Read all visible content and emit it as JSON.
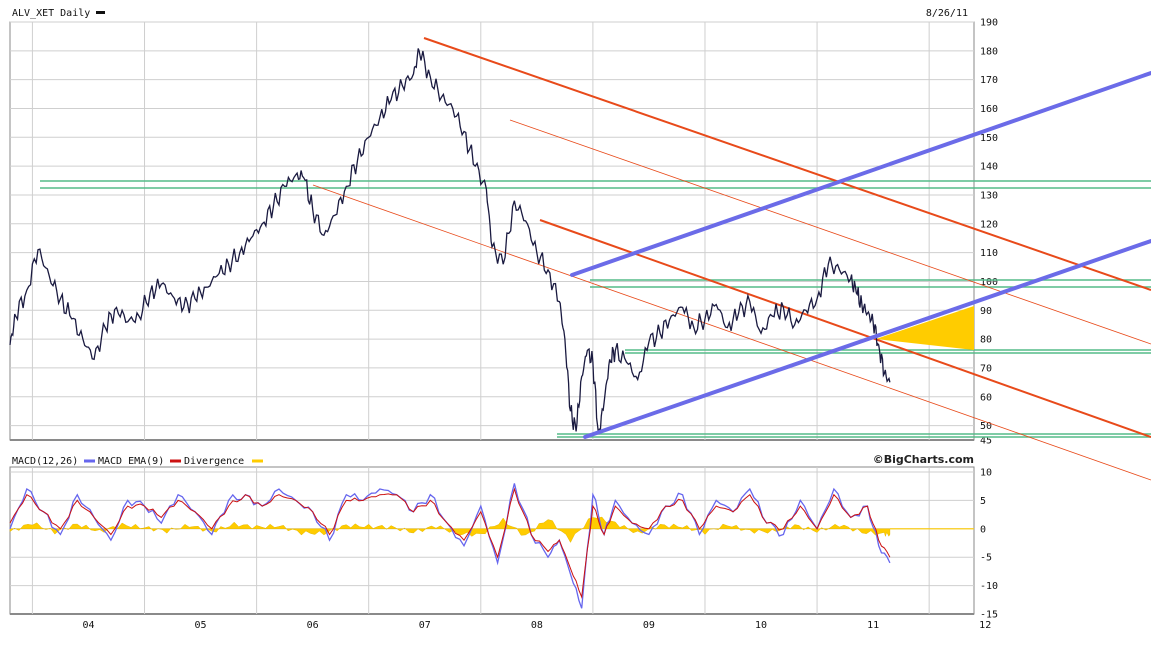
{
  "header": {
    "symbol_title": "ALV_XET Daily",
    "date": "8/26/11"
  },
  "legend": {
    "macd": "MACD(12,26)",
    "ema": "MACD EMA(9)",
    "divergence": "Divergence"
  },
  "brand": "©BigCharts.com",
  "colors": {
    "price": "#1a1a40",
    "macd": "#6666ee",
    "ema": "#cc1111",
    "divergence": "#ffcc00",
    "trend_blue": "#6b6be8",
    "channel_red": "#e84a1a",
    "support_green": "#55bb88",
    "grid": "#c8c8c8"
  },
  "chart_data": [
    {
      "type": "line",
      "name": "price",
      "ylim": [
        45,
        190
      ],
      "xlim": [
        2003.8,
        2012.4
      ],
      "y_ticks": [
        "190",
        "180",
        "170",
        "160",
        "150",
        "140",
        "130",
        "120",
        "110",
        "100",
        "90",
        "80",
        "70",
        "60",
        "50",
        "45"
      ],
      "x_ticks": [
        "04",
        "05",
        "06",
        "07",
        "08",
        "09",
        "10",
        "11",
        "12"
      ],
      "series": [
        {
          "x": [
            2003.8,
            2003.85,
            2003.95,
            2004.05,
            2004.15,
            2004.25,
            2004.35,
            2004.45,
            2004.55,
            2004.65,
            2004.75,
            2004.85,
            2004.95,
            2005.05,
            2005.15,
            2005.25,
            2005.35,
            2005.45,
            2005.55,
            2005.65,
            2005.75,
            2005.85,
            2005.95,
            2006.05,
            2006.15,
            2006.25,
            2006.35,
            2006.42,
            2006.5,
            2006.6,
            2006.7,
            2006.8,
            2006.9,
            2007.0,
            2007.1,
            2007.2,
            2007.3,
            2007.4,
            2007.45,
            2007.55,
            2007.65,
            2007.75,
            2007.85,
            2007.95,
            2008.05,
            2008.1,
            2008.2,
            2008.3,
            2008.4,
            2008.5,
            2008.6,
            2008.7,
            2008.75,
            2008.8,
            2008.85,
            2008.9,
            2008.95,
            2009.0,
            2009.05,
            2009.1,
            2009.15,
            2009.2,
            2009.3,
            2009.4,
            2009.5,
            2009.6,
            2009.7,
            2009.8,
            2009.9,
            2010.0,
            2010.1,
            2010.2,
            2010.3,
            2010.4,
            2010.5,
            2010.6,
            2010.7,
            2010.8,
            2010.9,
            2011.0,
            2011.1,
            2011.2,
            2011.3,
            2011.35,
            2011.4,
            2011.45,
            2011.5,
            2011.55,
            2011.6,
            2011.65
          ],
          "y": [
            78,
            88,
            97,
            111,
            102,
            94,
            87,
            80,
            73,
            84,
            91,
            86,
            88,
            96,
            99,
            95,
            91,
            94,
            98,
            102,
            106,
            110,
            115,
            120,
            126,
            133,
            137,
            136,
            125,
            116,
            123,
            133,
            142,
            150,
            157,
            163,
            168,
            172,
            180,
            171,
            164,
            160,
            152,
            140,
            132,
            112,
            106,
            128,
            121,
            110,
            104,
            93,
            80,
            55,
            48,
            67,
            76,
            72,
            47,
            58,
            73,
            76,
            72,
            66,
            79,
            82,
            88,
            91,
            84,
            87,
            92,
            84,
            89,
            93,
            82,
            88,
            91,
            85,
            90,
            94,
            106,
            104,
            101,
            96,
            92,
            89,
            86,
            78,
            68,
            65
          ]
        }
      ]
    },
    {
      "type": "line",
      "name": "macd",
      "ylim": [
        -15,
        10
      ],
      "y_ticks": [
        "10",
        "5",
        "0",
        "-5",
        "-10",
        "-15"
      ],
      "series": [
        {
          "name": "MACD(12,26)",
          "x": [
            2003.8,
            2003.95,
            2004.1,
            2004.25,
            2004.4,
            2004.55,
            2004.7,
            2004.85,
            2005.0,
            2005.15,
            2005.3,
            2005.45,
            2005.6,
            2005.75,
            2005.9,
            2006.05,
            2006.2,
            2006.35,
            2006.5,
            2006.65,
            2006.8,
            2006.95,
            2007.1,
            2007.25,
            2007.4,
            2007.55,
            2007.7,
            2007.85,
            2008.0,
            2008.15,
            2008.3,
            2008.45,
            2008.6,
            2008.7,
            2008.8,
            2008.9,
            2009.0,
            2009.1,
            2009.2,
            2009.35,
            2009.5,
            2009.65,
            2009.8,
            2009.95,
            2010.1,
            2010.25,
            2010.4,
            2010.55,
            2010.7,
            2010.85,
            2011.0,
            2011.15,
            2011.3,
            2011.45,
            2011.55,
            2011.65
          ],
          "y": [
            0,
            7,
            3,
            -1,
            6,
            2,
            -2,
            5,
            4,
            1,
            6,
            3,
            -1,
            5,
            6,
            4,
            7,
            5,
            3,
            -2,
            6,
            5,
            7,
            6,
            3,
            6,
            1,
            -3,
            4,
            -6,
            8,
            -1,
            -5,
            -2,
            -8,
            -14,
            6,
            -1,
            5,
            1,
            -1,
            4,
            6,
            -1,
            5,
            3,
            7,
            1,
            -1,
            5,
            0,
            7,
            2,
            4,
            -3,
            -6
          ]
        },
        {
          "name": "MACD EMA(9)",
          "x": [
            2003.8,
            2003.95,
            2004.1,
            2004.25,
            2004.4,
            2004.55,
            2004.7,
            2004.85,
            2005.0,
            2005.15,
            2005.3,
            2005.45,
            2005.6,
            2005.75,
            2005.9,
            2006.05,
            2006.2,
            2006.35,
            2006.5,
            2006.65,
            2006.8,
            2006.95,
            2007.1,
            2007.25,
            2007.4,
            2007.55,
            2007.7,
            2007.85,
            2008.0,
            2008.15,
            2008.3,
            2008.45,
            2008.6,
            2008.7,
            2008.8,
            2008.9,
            2009.0,
            2009.1,
            2009.2,
            2009.35,
            2009.5,
            2009.65,
            2009.8,
            2009.95,
            2010.1,
            2010.25,
            2010.4,
            2010.55,
            2010.7,
            2010.85,
            2011.0,
            2011.15,
            2011.3,
            2011.45,
            2011.55,
            2011.65
          ],
          "y": [
            1,
            6,
            3,
            0,
            5,
            2,
            -1,
            4,
            4,
            2,
            5,
            3,
            0,
            4,
            6,
            4,
            6,
            5,
            3,
            -1,
            5,
            5,
            6,
            6,
            3,
            5,
            1,
            -2,
            3,
            -5,
            7,
            -1,
            -4,
            -2,
            -7,
            -12,
            4,
            -1,
            4,
            1,
            0,
            4,
            5,
            0,
            4,
            3,
            6,
            1,
            0,
            4,
            0,
            6,
            2,
            4,
            -2,
            -5
          ]
        },
        {
          "name": "Divergence",
          "x": [
            2003.8,
            2004.0,
            2004.2,
            2004.4,
            2004.6,
            2004.8,
            2005.0,
            2005.2,
            2005.4,
            2005.6,
            2005.8,
            2006.0,
            2006.2,
            2006.4,
            2006.6,
            2006.8,
            2007.0,
            2007.2,
            2007.4,
            2007.6,
            2007.8,
            2008.0,
            2008.2,
            2008.4,
            2008.6,
            2008.8,
            2009.0,
            2009.2,
            2009.4,
            2009.6,
            2009.8,
            2010.0,
            2010.2,
            2010.4,
            2010.6,
            2010.8,
            2011.0,
            2011.2,
            2011.4,
            2011.6,
            2011.65
          ],
          "y": [
            -0.5,
            1,
            -0.6,
            0.8,
            -0.5,
            0.7,
            0.2,
            -0.4,
            0.6,
            -0.5,
            0.8,
            0.3,
            0.5,
            -0.7,
            -0.8,
            0.6,
            0.4,
            0.3,
            -0.6,
            0.5,
            -0.9,
            -1,
            1.5,
            -1.3,
            1.8,
            -2,
            2.2,
            1,
            -0.8,
            0.6,
            0.4,
            -0.6,
            0.7,
            -0.4,
            -0.5,
            0.6,
            -0.4,
            0.7,
            -0.6,
            -0.9,
            -1
          ]
        }
      ]
    }
  ]
}
